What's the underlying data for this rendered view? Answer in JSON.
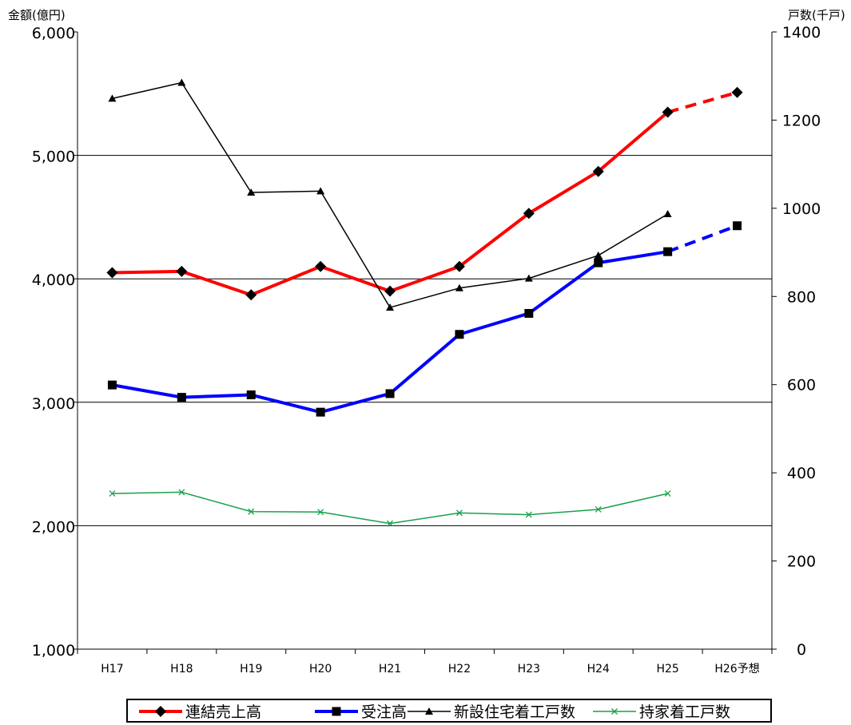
{
  "chart_data": {
    "type": "line",
    "left_axis_label": "金額(億円)",
    "right_axis_label": "戸数(千戸)",
    "left_ylim": [
      1000,
      6000
    ],
    "right_ylim": [
      0,
      1400
    ],
    "left_ticks": [
      "1,000",
      "2,000",
      "3,000",
      "4,000",
      "5,000",
      "6,000"
    ],
    "left_tick_values": [
      1000,
      2000,
      3000,
      4000,
      5000,
      6000
    ],
    "right_ticks": [
      "0",
      "200",
      "400",
      "600",
      "800",
      "1000",
      "1200",
      "1400"
    ],
    "right_tick_values": [
      0,
      200,
      400,
      600,
      800,
      1000,
      1200,
      1400
    ],
    "categories": [
      "H17",
      "H18",
      "H19",
      "H20",
      "H21",
      "H22",
      "H23",
      "H24",
      "H25",
      "H26予想"
    ],
    "grid": true,
    "legend_position": "bottom",
    "series": [
      {
        "name": "連結売上高",
        "axis": "left",
        "color": "#ff0000",
        "marker": "diamond",
        "line_width": 4,
        "values": [
          4050,
          4060,
          3870,
          4100,
          3900,
          4100,
          4530,
          4870,
          5350,
          5510
        ],
        "dashed_from_index": 8
      },
      {
        "name": "受注高",
        "axis": "left",
        "color": "#0000ff",
        "marker": "square",
        "line_width": 4,
        "values": [
          3140,
          3040,
          3060,
          2920,
          3070,
          3550,
          3720,
          4130,
          4220,
          4430
        ],
        "dashed_from_index": 8
      },
      {
        "name": "新設住宅着工戸数",
        "axis": "right",
        "color": "#000000",
        "marker": "triangle",
        "line_width": 1.5,
        "values": [
          1249,
          1285,
          1036,
          1039,
          775,
          819,
          841,
          893,
          987,
          null
        ]
      },
      {
        "name": "持家着工戸数",
        "axis": "right",
        "color": "#1aa04a",
        "marker": "x",
        "line_width": 1.5,
        "values": [
          353,
          356,
          312,
          311,
          285,
          309,
          305,
          317,
          353,
          null
        ]
      }
    ]
  }
}
